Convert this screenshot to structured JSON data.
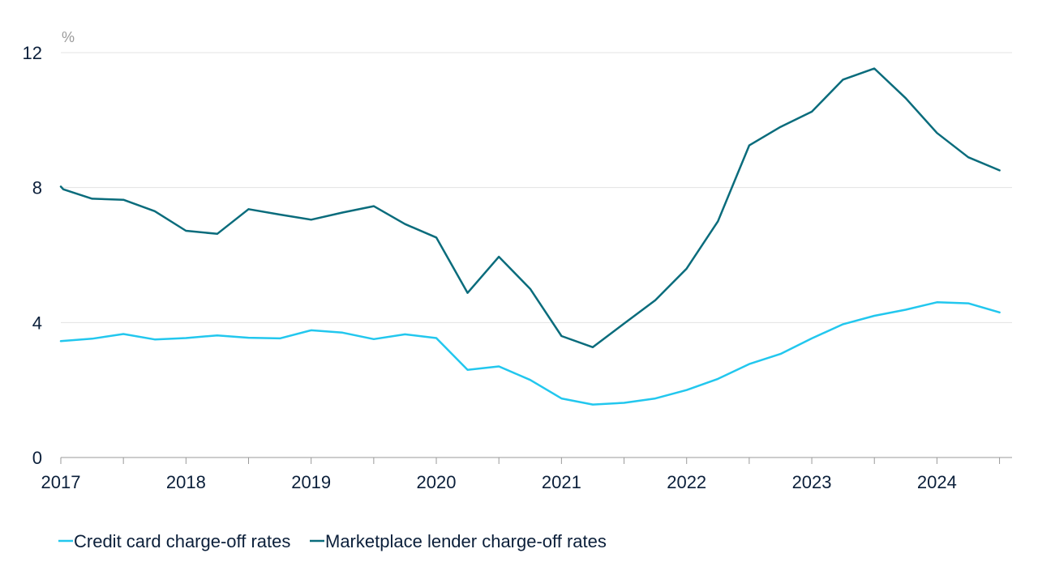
{
  "chart_data": {
    "type": "line",
    "title": "",
    "xlabel": "",
    "ylabel": "%",
    "xlim": [
      2017.0,
      2024.6
    ],
    "ylim": [
      0,
      12
    ],
    "y_ticks": [
      0,
      4,
      8,
      12
    ],
    "x_ticks": [
      2017,
      2018,
      2019,
      2020,
      2021,
      2022,
      2023,
      2024
    ],
    "grid": "horizontal",
    "legend_position": "bottom-left",
    "series": [
      {
        "name": "Credit card charge-off rates",
        "color": "#22c7ee",
        "points": [
          [
            2017.0,
            3.45
          ],
          [
            2017.25,
            3.52
          ],
          [
            2017.5,
            3.66
          ],
          [
            2017.75,
            3.5
          ],
          [
            2018.0,
            3.54
          ],
          [
            2018.25,
            3.62
          ],
          [
            2018.5,
            3.55
          ],
          [
            2018.75,
            3.53
          ],
          [
            2019.0,
            3.77
          ],
          [
            2019.25,
            3.7
          ],
          [
            2019.5,
            3.51
          ],
          [
            2019.75,
            3.65
          ],
          [
            2020.0,
            3.54
          ],
          [
            2020.25,
            2.6
          ],
          [
            2020.5,
            2.7
          ],
          [
            2020.75,
            2.3
          ],
          [
            2021.0,
            1.75
          ],
          [
            2021.25,
            1.57
          ],
          [
            2021.5,
            1.62
          ],
          [
            2021.75,
            1.75
          ],
          [
            2022.0,
            2.0
          ],
          [
            2022.25,
            2.33
          ],
          [
            2022.5,
            2.77
          ],
          [
            2022.75,
            3.07
          ],
          [
            2023.0,
            3.53
          ],
          [
            2023.25,
            3.95
          ],
          [
            2023.5,
            4.2
          ],
          [
            2023.75,
            4.38
          ],
          [
            2024.0,
            4.6
          ],
          [
            2024.25,
            4.57
          ],
          [
            2024.5,
            4.3
          ]
        ]
      },
      {
        "name": "Marketplace lender charge-off rates",
        "color": "#0a6c7c",
        "points": [
          [
            2017.0,
            8.03
          ],
          [
            2017.02,
            7.95
          ],
          [
            2017.25,
            7.67
          ],
          [
            2017.5,
            7.64
          ],
          [
            2017.75,
            7.3
          ],
          [
            2018.0,
            6.72
          ],
          [
            2018.25,
            6.63
          ],
          [
            2018.5,
            7.36
          ],
          [
            2018.75,
            7.2
          ],
          [
            2019.0,
            7.05
          ],
          [
            2019.25,
            7.26
          ],
          [
            2019.5,
            7.45
          ],
          [
            2019.75,
            6.92
          ],
          [
            2020.0,
            6.52
          ],
          [
            2020.25,
            4.88
          ],
          [
            2020.5,
            5.95
          ],
          [
            2020.75,
            5.0
          ],
          [
            2021.0,
            3.6
          ],
          [
            2021.25,
            3.27
          ],
          [
            2021.5,
            3.97
          ],
          [
            2021.75,
            4.66
          ],
          [
            2022.0,
            5.6
          ],
          [
            2022.25,
            7.0
          ],
          [
            2022.5,
            9.25
          ],
          [
            2022.75,
            9.8
          ],
          [
            2023.0,
            10.25
          ],
          [
            2023.25,
            11.2
          ],
          [
            2023.5,
            11.53
          ],
          [
            2023.75,
            10.65
          ],
          [
            2024.0,
            9.62
          ],
          [
            2024.25,
            8.9
          ],
          [
            2024.5,
            8.51
          ]
        ]
      }
    ]
  }
}
